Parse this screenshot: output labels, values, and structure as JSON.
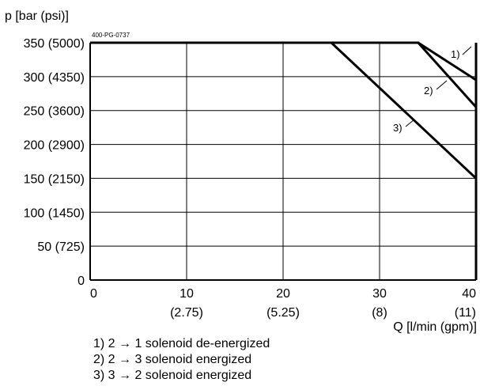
{
  "chart_data": {
    "type": "line",
    "title": "",
    "figure_code": "400-PG-0737",
    "ylabel": "p [bar (psi)]",
    "xlabel": "Q [l/min (gpm)]",
    "xlim": [
      0,
      40
    ],
    "ylim": [
      0,
      350
    ],
    "grid": true,
    "x_ticks": [
      {
        "value": 0,
        "label": "0",
        "sub": ""
      },
      {
        "value": 10,
        "label": "10",
        "sub": "(2.75)"
      },
      {
        "value": 20,
        "label": "20",
        "sub": "(5.25)"
      },
      {
        "value": 30,
        "label": "30",
        "sub": "(8)"
      },
      {
        "value": 40,
        "label": "40",
        "sub": "(11)"
      }
    ],
    "y_ticks": [
      {
        "value": 0,
        "label": "0"
      },
      {
        "value": 50,
        "label": "50 (725)"
      },
      {
        "value": 100,
        "label": "100 (1450)"
      },
      {
        "value": 150,
        "label": "150 (2150)"
      },
      {
        "value": 200,
        "label": "200 (2900)"
      },
      {
        "value": 250,
        "label": "250 (3600)"
      },
      {
        "value": 300,
        "label": "300 (4350)"
      },
      {
        "value": 350,
        "label": "350 (5000)"
      }
    ],
    "series": [
      {
        "name": "1)",
        "x": [
          0,
          34,
          40
        ],
        "y": [
          350,
          350,
          295
        ]
      },
      {
        "name": "2)",
        "x": [
          0,
          34,
          40
        ],
        "y": [
          350,
          350,
          255
        ]
      },
      {
        "name": "3)",
        "x": [
          0,
          25,
          40
        ],
        "y": [
          350,
          350,
          150
        ]
      }
    ],
    "legend": [
      "1) 2 → 1 solenoid de-energized",
      "2) 2 → 3 solenoid energized",
      "3) 3 → 2 solenoid energized"
    ],
    "colors": {
      "line": "#000000",
      "grid": "#000000",
      "background": "#ffffff"
    }
  }
}
